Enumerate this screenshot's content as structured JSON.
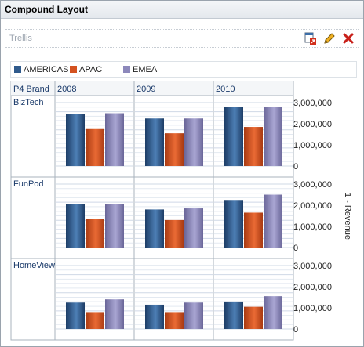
{
  "window": {
    "title": "Compound Layout"
  },
  "trellis": {
    "label": "Trellis",
    "toolbar": [
      {
        "name": "export-icon",
        "tooltip": ""
      },
      {
        "name": "edit-icon",
        "tooltip": ""
      },
      {
        "name": "remove-icon",
        "tooltip": ""
      }
    ]
  },
  "legend": [
    {
      "label": "AMERICAS",
      "color": "#2f5a8c"
    },
    {
      "label": "APAC",
      "color": "#d45220"
    },
    {
      "label": "EMEA",
      "color": "#8c88bb"
    }
  ],
  "table": {
    "corner_label": "P4 Brand",
    "col_headers": [
      "2008",
      "2009",
      "2010"
    ],
    "row_headers": [
      "BizTech",
      "FunPod",
      "HomeView"
    ],
    "measure_label": "1 - Revenue"
  },
  "chart_data": {
    "type": "bar",
    "series": [
      {
        "name": "AMERICAS"
      },
      {
        "name": "APAC"
      },
      {
        "name": "EMEA"
      }
    ],
    "ylim": [
      0,
      3000000
    ],
    "yticks": [
      0,
      1000000,
      2000000,
      3000000
    ],
    "ytick_labels": [
      "0",
      "1,000,000",
      "2,000,000",
      "3,000,000"
    ],
    "cells": [
      {
        "row": "BizTech",
        "col": "2008",
        "values": [
          2450000,
          1750000,
          2500000
        ]
      },
      {
        "row": "BizTech",
        "col": "2009",
        "values": [
          2250000,
          1550000,
          2250000
        ]
      },
      {
        "row": "BizTech",
        "col": "2010",
        "values": [
          2800000,
          1850000,
          2800000
        ]
      },
      {
        "row": "FunPod",
        "col": "2008",
        "values": [
          2050000,
          1350000,
          2050000
        ]
      },
      {
        "row": "FunPod",
        "col": "2009",
        "values": [
          1800000,
          1300000,
          1850000
        ]
      },
      {
        "row": "FunPod",
        "col": "2010",
        "values": [
          2250000,
          1650000,
          2500000
        ]
      },
      {
        "row": "HomeView",
        "col": "2008",
        "values": [
          1250000,
          800000,
          1400000
        ]
      },
      {
        "row": "HomeView",
        "col": "2009",
        "values": [
          1150000,
          800000,
          1250000
        ]
      },
      {
        "row": "HomeView",
        "col": "2010",
        "values": [
          1300000,
          1050000,
          1550000
        ]
      }
    ]
  }
}
